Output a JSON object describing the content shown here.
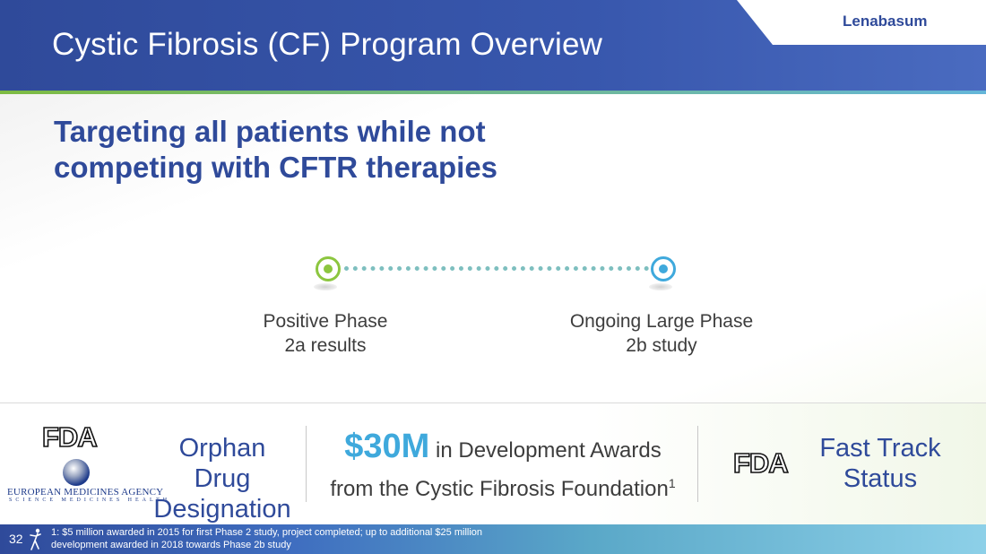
{
  "header": {
    "title": "Cystic Fibrosis (CF) Program Overview",
    "brand": "Lenabasum"
  },
  "subtitle": {
    "line1": "Targeting all patients while not",
    "line2": "competing with CFTR therapies"
  },
  "timeline": {
    "milestones": [
      {
        "line1": "Positive Phase",
        "line2": "2a results",
        "color": "#8cc63f"
      },
      {
        "line1": "Ongoing Large Phase",
        "line2": "2b study",
        "color": "#3fa9dc"
      }
    ]
  },
  "band": {
    "fda_logo": "FDA",
    "ema_logo": {
      "name": "EUROPEAN MEDICINES AGENCY",
      "tagline": "SCIENCE MEDICINES HEALTH"
    },
    "orphan": {
      "line1": "Orphan Drug",
      "line2": "Designation"
    },
    "awards": {
      "amount": "$30M",
      "line1_rest": "in Development Awards",
      "line2": "from the Cystic Fibrosis Foundation",
      "footnote_ref": "1"
    },
    "fast_track": {
      "line1": "Fast Track",
      "line2": "Status"
    }
  },
  "footer": {
    "page_number": "32",
    "footnote_line1": "1: $5 million awarded in 2015 for first Phase 2 study, project completed; up to additional $25 million",
    "footnote_line2": "development awarded in 2018 towards Phase 2b study"
  },
  "colors": {
    "brand_blue": "#2f4a9a",
    "accent_green": "#8cc63f",
    "accent_blue": "#3fa9dc"
  }
}
